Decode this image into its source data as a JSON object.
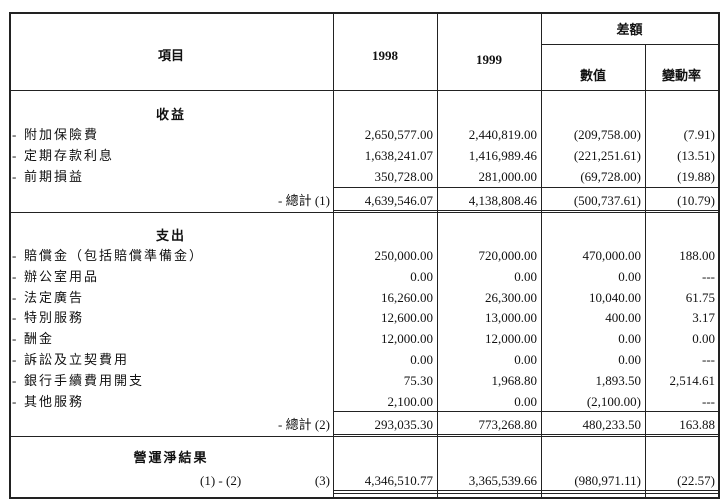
{
  "header": {
    "item": "項目",
    "year1": "1998",
    "year2": "1999",
    "difference": "差額",
    "value": "數值",
    "change_rate": "變動率"
  },
  "income": {
    "title": "收益",
    "rows": [
      {
        "label": "附加保險費",
        "y1998": "2,650,577.00",
        "y1999": "2,440,819.00",
        "diff": "(209,758.00)",
        "rate": "(7.91)"
      },
      {
        "label": "定期存款利息",
        "y1998": "1,638,241.07",
        "y1999": "1,416,989.46",
        "diff": "(221,251.61)",
        "rate": "(13.51)"
      },
      {
        "label": "前期損益",
        "y1998": "350,728.00",
        "y1999": "281,000.00",
        "diff": "(69,728.00)",
        "rate": "(19.88)"
      }
    ],
    "total": {
      "label": "- 總計 (1)",
      "y1998": "4,639,546.07",
      "y1999": "4,138,808.46",
      "diff": "(500,737.61)",
      "rate": "(10.79)"
    }
  },
  "expense": {
    "title": "支出",
    "rows": [
      {
        "label": "賠償金（包括賠償準備金）",
        "y1998": "250,000.00",
        "y1999": "720,000.00",
        "diff": "470,000.00",
        "rate": "188.00"
      },
      {
        "label": "辦公室用品",
        "y1998": "0.00",
        "y1999": "0.00",
        "diff": "0.00",
        "rate": "---"
      },
      {
        "label": "法定廣告",
        "y1998": "16,260.00",
        "y1999": "26,300.00",
        "diff": "10,040.00",
        "rate": "61.75"
      },
      {
        "label": "特別服務",
        "y1998": "12,600.00",
        "y1999": "13,000.00",
        "diff": "400.00",
        "rate": "3.17"
      },
      {
        "label": "酬金",
        "y1998": "12,000.00",
        "y1999": "12,000.00",
        "diff": "0.00",
        "rate": "0.00"
      },
      {
        "label": "訴訟及立契費用",
        "y1998": "0.00",
        "y1999": "0.00",
        "diff": "0.00",
        "rate": "---"
      },
      {
        "label": "銀行手續費用開支",
        "y1998": "75.30",
        "y1999": "1,968.80",
        "diff": "1,893.50",
        "rate": "2,514.61"
      },
      {
        "label": "其他服務",
        "y1998": "2,100.00",
        "y1999": "0.00",
        "diff": "(2,100.00)",
        "rate": "---"
      }
    ],
    "total": {
      "label": "- 總計 (2)",
      "y1998": "293,035.30",
      "y1999": "773,268.80",
      "diff": "480,233.50",
      "rate": "163.88"
    }
  },
  "net": {
    "title": "營運淨結果",
    "formula": "(1) - (2)",
    "ref": "(3)",
    "y1998": "4,346,510.77",
    "y1999": "3,365,539.66",
    "diff": "(980,971.11)",
    "rate": "(22.57)"
  },
  "bullet": "-"
}
